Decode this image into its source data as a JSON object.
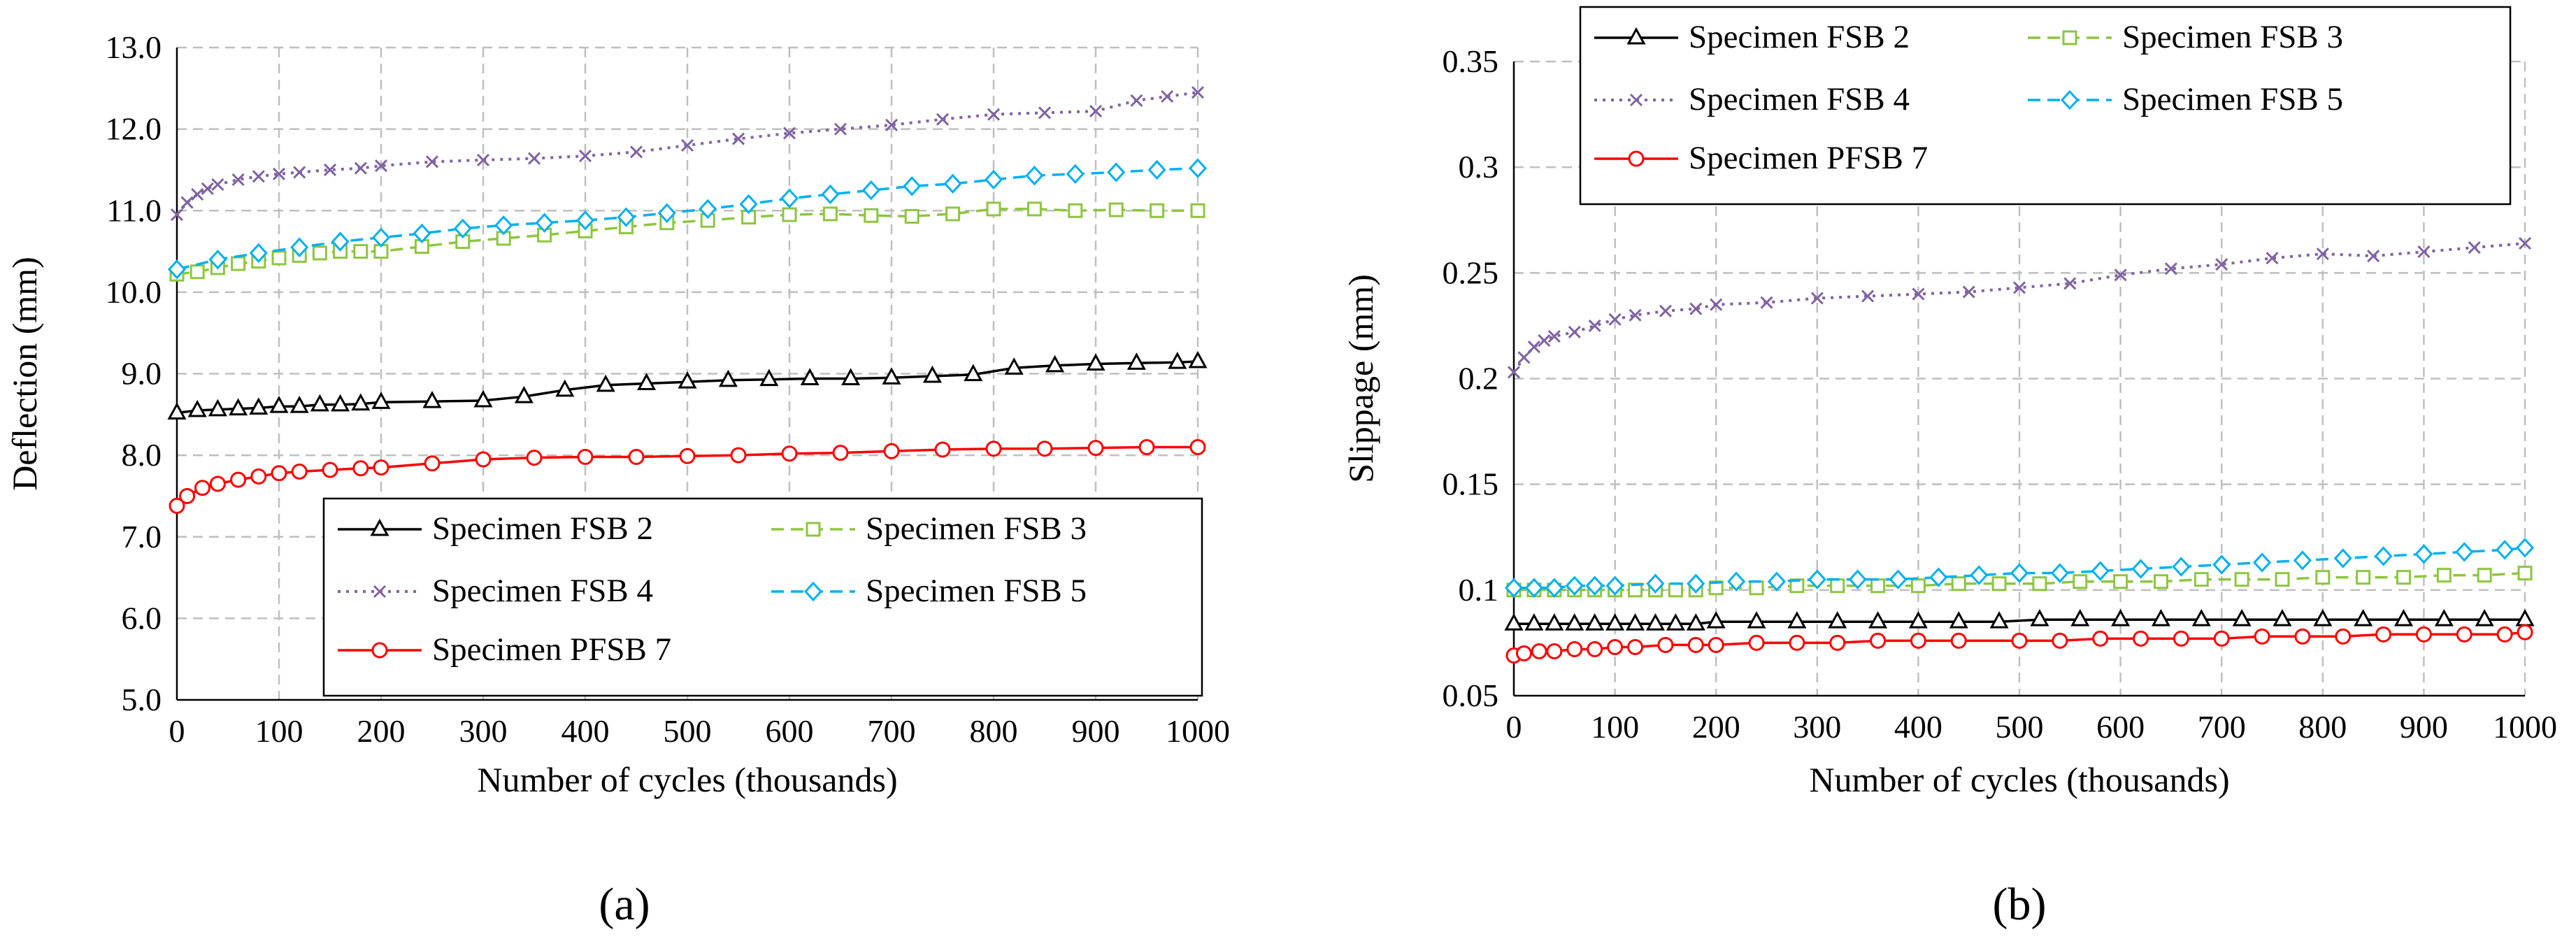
{
  "chart_data": [
    {
      "type": "line",
      "panel_label": "(a)",
      "xlabel": "Number of cycles  (thousands)",
      "ylabel": "Deflection (mm)",
      "xlim": [
        0,
        1000
      ],
      "ylim": [
        5.0,
        13.0
      ],
      "xticks": [
        0,
        100,
        200,
        300,
        400,
        500,
        600,
        700,
        800,
        900,
        1000
      ],
      "yticks": [
        5.0,
        6.0,
        7.0,
        8.0,
        9.0,
        10.0,
        11.0,
        12.0,
        13.0
      ],
      "ytick_decimals": 1,
      "grid": true,
      "legend": "bottom-right",
      "series": [
        {
          "name": "Specimen FSB 2",
          "marker": "triangle",
          "color": "#000000",
          "dash": "solid",
          "x": [
            0,
            20,
            40,
            60,
            80,
            100,
            120,
            140,
            160,
            180,
            200,
            250,
            300,
            340,
            380,
            420,
            460,
            500,
            540,
            580,
            620,
            660,
            700,
            740,
            780,
            820,
            860,
            900,
            940,
            980,
            1000
          ],
          "y": [
            8.52,
            8.55,
            8.56,
            8.57,
            8.58,
            8.6,
            8.6,
            8.62,
            8.62,
            8.63,
            8.65,
            8.66,
            8.67,
            8.72,
            8.8,
            8.86,
            8.88,
            8.9,
            8.92,
            8.93,
            8.94,
            8.94,
            8.95,
            8.97,
            8.99,
            9.07,
            9.1,
            9.12,
            9.13,
            9.14,
            9.15
          ]
        },
        {
          "name": "Specimen FSB 3",
          "marker": "square",
          "color": "#8dc63f",
          "dash": "dashed",
          "x": [
            0,
            20,
            40,
            60,
            80,
            100,
            120,
            140,
            160,
            180,
            200,
            240,
            280,
            320,
            360,
            400,
            440,
            480,
            520,
            560,
            600,
            640,
            680,
            720,
            760,
            800,
            840,
            880,
            920,
            960,
            1000
          ],
          "y": [
            10.22,
            10.25,
            10.3,
            10.35,
            10.38,
            10.42,
            10.45,
            10.48,
            10.5,
            10.5,
            10.5,
            10.56,
            10.62,
            10.66,
            10.7,
            10.75,
            10.8,
            10.85,
            10.88,
            10.92,
            10.95,
            10.96,
            10.94,
            10.93,
            10.96,
            11.02,
            11.02,
            11.0,
            11.01,
            11.0,
            11.0
          ]
        },
        {
          "name": "Specimen FSB 4",
          "marker": "x",
          "color": "#8064a2",
          "dash": "dotted",
          "x": [
            0,
            10,
            20,
            30,
            40,
            60,
            80,
            100,
            120,
            150,
            180,
            200,
            250,
            300,
            350,
            400,
            450,
            500,
            550,
            600,
            650,
            700,
            750,
            800,
            850,
            900,
            940,
            970,
            1000
          ],
          "y": [
            10.95,
            11.1,
            11.2,
            11.27,
            11.32,
            11.38,
            11.42,
            11.45,
            11.47,
            11.5,
            11.52,
            11.55,
            11.6,
            11.62,
            11.64,
            11.67,
            11.72,
            11.8,
            11.88,
            11.95,
            12.0,
            12.05,
            12.12,
            12.18,
            12.2,
            12.22,
            12.35,
            12.4,
            12.45
          ]
        },
        {
          "name": "Specimen FSB 5",
          "marker": "diamond",
          "color": "#00b0f0",
          "dash": "dashed",
          "x": [
            0,
            40,
            80,
            120,
            160,
            200,
            240,
            280,
            320,
            360,
            400,
            440,
            480,
            520,
            560,
            600,
            640,
            680,
            720,
            760,
            800,
            840,
            880,
            920,
            960,
            1000
          ],
          "y": [
            10.28,
            10.4,
            10.48,
            10.55,
            10.62,
            10.67,
            10.72,
            10.78,
            10.82,
            10.85,
            10.88,
            10.92,
            10.97,
            11.02,
            11.08,
            11.15,
            11.2,
            11.25,
            11.3,
            11.33,
            11.38,
            11.43,
            11.45,
            11.47,
            11.5,
            11.52
          ]
        },
        {
          "name": "Specimen PFSB 7",
          "marker": "circle",
          "color": "#ff0000",
          "dash": "solid",
          "x": [
            0,
            10,
            25,
            40,
            60,
            80,
            100,
            120,
            150,
            180,
            200,
            250,
            300,
            350,
            400,
            450,
            500,
            550,
            600,
            650,
            700,
            750,
            800,
            850,
            900,
            950,
            1000
          ],
          "y": [
            7.38,
            7.5,
            7.6,
            7.65,
            7.7,
            7.74,
            7.78,
            7.8,
            7.82,
            7.84,
            7.85,
            7.9,
            7.95,
            7.97,
            7.98,
            7.98,
            7.99,
            8.0,
            8.02,
            8.03,
            8.05,
            8.07,
            8.08,
            8.08,
            8.09,
            8.1,
            8.1
          ]
        }
      ]
    },
    {
      "type": "line",
      "panel_label": "(b)",
      "xlabel": "Number of cycles  (thousands)",
      "ylabel": "Slippage  (mm)",
      "xlim": [
        0,
        1000
      ],
      "ylim": [
        0.05,
        0.35
      ],
      "xticks": [
        0,
        100,
        200,
        300,
        400,
        500,
        600,
        700,
        800,
        900,
        1000
      ],
      "yticks": [
        0.05,
        0.1,
        0.15,
        0.2,
        0.25,
        0.3,
        0.35
      ],
      "ytick_labels": [
        "0.05",
        "0.1",
        "0.15",
        "0.2",
        "0.25",
        "0.3",
        "0.35"
      ],
      "grid": true,
      "legend": "top",
      "series": [
        {
          "name": "Specimen FSB 2",
          "marker": "triangle",
          "color": "#000000",
          "dash": "solid",
          "x": [
            0,
            20,
            40,
            60,
            80,
            100,
            120,
            140,
            160,
            180,
            200,
            240,
            280,
            320,
            360,
            400,
            440,
            480,
            520,
            560,
            600,
            640,
            680,
            720,
            760,
            800,
            840,
            880,
            920,
            960,
            1000
          ],
          "y": [
            0.084,
            0.084,
            0.084,
            0.084,
            0.084,
            0.084,
            0.084,
            0.084,
            0.084,
            0.084,
            0.085,
            0.085,
            0.085,
            0.085,
            0.085,
            0.085,
            0.085,
            0.085,
            0.086,
            0.086,
            0.086,
            0.086,
            0.086,
            0.086,
            0.086,
            0.086,
            0.086,
            0.086,
            0.086,
            0.086,
            0.086
          ]
        },
        {
          "name": "Specimen FSB 3",
          "marker": "square",
          "color": "#8dc63f",
          "dash": "dashed",
          "x": [
            0,
            20,
            40,
            60,
            80,
            100,
            120,
            140,
            160,
            180,
            200,
            240,
            280,
            320,
            360,
            400,
            440,
            480,
            520,
            560,
            600,
            640,
            680,
            720,
            760,
            800,
            840,
            880,
            920,
            960,
            1000
          ],
          "y": [
            0.1,
            0.1,
            0.1,
            0.1,
            0.1,
            0.1,
            0.1,
            0.1,
            0.1,
            0.1,
            0.101,
            0.101,
            0.102,
            0.102,
            0.102,
            0.102,
            0.103,
            0.103,
            0.103,
            0.104,
            0.104,
            0.104,
            0.105,
            0.105,
            0.105,
            0.106,
            0.106,
            0.106,
            0.107,
            0.107,
            0.108
          ]
        },
        {
          "name": "Specimen FSB 4",
          "marker": "x",
          "color": "#8064a2",
          "dash": "dotted",
          "x": [
            0,
            10,
            20,
            30,
            40,
            60,
            80,
            100,
            120,
            150,
            180,
            200,
            250,
            300,
            350,
            400,
            450,
            500,
            550,
            600,
            650,
            700,
            750,
            800,
            850,
            900,
            950,
            1000
          ],
          "y": [
            0.203,
            0.21,
            0.215,
            0.218,
            0.22,
            0.222,
            0.225,
            0.228,
            0.23,
            0.232,
            0.233,
            0.235,
            0.236,
            0.238,
            0.239,
            0.24,
            0.241,
            0.243,
            0.245,
            0.249,
            0.252,
            0.254,
            0.257,
            0.259,
            0.258,
            0.26,
            0.262,
            0.264
          ]
        },
        {
          "name": "Specimen FSB 5",
          "marker": "diamond",
          "color": "#00b0f0",
          "dash": "dashed",
          "x": [
            0,
            20,
            40,
            60,
            80,
            100,
            140,
            180,
            220,
            260,
            300,
            340,
            380,
            420,
            460,
            500,
            540,
            580,
            620,
            660,
            700,
            740,
            780,
            820,
            860,
            900,
            940,
            980,
            1000
          ],
          "y": [
            0.101,
            0.101,
            0.101,
            0.102,
            0.102,
            0.102,
            0.103,
            0.103,
            0.104,
            0.104,
            0.105,
            0.105,
            0.105,
            0.106,
            0.107,
            0.108,
            0.108,
            0.109,
            0.11,
            0.111,
            0.112,
            0.113,
            0.114,
            0.115,
            0.116,
            0.117,
            0.118,
            0.119,
            0.12
          ]
        },
        {
          "name": "Specimen PFSB 7",
          "marker": "circle",
          "color": "#ff0000",
          "dash": "solid",
          "x": [
            0,
            10,
            25,
            40,
            60,
            80,
            100,
            120,
            150,
            180,
            200,
            240,
            280,
            320,
            360,
            400,
            440,
            500,
            540,
            580,
            620,
            660,
            700,
            740,
            780,
            820,
            860,
            900,
            940,
            980,
            1000
          ],
          "y": [
            0.069,
            0.07,
            0.071,
            0.071,
            0.072,
            0.072,
            0.073,
            0.073,
            0.074,
            0.074,
            0.074,
            0.075,
            0.075,
            0.075,
            0.076,
            0.076,
            0.076,
            0.076,
            0.076,
            0.077,
            0.077,
            0.077,
            0.077,
            0.078,
            0.078,
            0.078,
            0.079,
            0.079,
            0.079,
            0.079,
            0.08
          ]
        }
      ]
    }
  ]
}
